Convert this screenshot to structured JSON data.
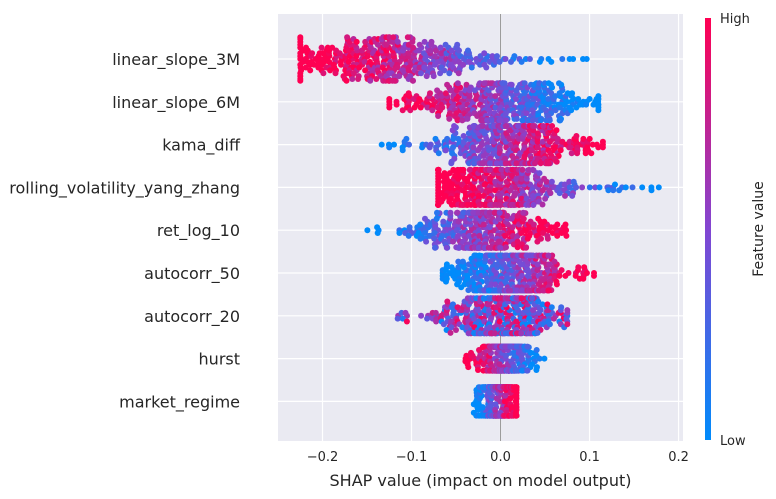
{
  "chart_data": {
    "type": "scatter",
    "subtype": "shap-beeswarm",
    "xlabel": "SHAP value (impact on model output)",
    "xlim": [
      -0.25,
      0.205
    ],
    "xticks": [
      -0.2,
      -0.1,
      0.0,
      0.1,
      0.2
    ],
    "xtick_labels": [
      "−0.2",
      "−0.1",
      "0.0",
      "0.1",
      "0.2"
    ],
    "colorbar": {
      "title": "Feature value",
      "high_label": "High",
      "low_label": "Low",
      "low_color": "#008bfb",
      "high_color": "#ff0052"
    },
    "background": "#eaeaf2",
    "grid": true,
    "features": [
      {
        "name": "linear_slope_3M",
        "range": [
          -0.225,
          0.1
        ],
        "center": -0.12,
        "spread": 0.06,
        "corr": -1,
        "width": 1.0
      },
      {
        "name": "linear_slope_6M",
        "range": [
          -0.125,
          0.11
        ],
        "center": 0.0,
        "spread": 0.05,
        "corr": -1,
        "width": 0.85
      },
      {
        "name": "kama_diff",
        "range": [
          -0.145,
          0.115
        ],
        "center": 0.01,
        "spread": 0.04,
        "corr": 1,
        "width": 0.85
      },
      {
        "name": "rolling_volatility_yang_zhang",
        "range": [
          -0.07,
          0.185
        ],
        "center": -0.01,
        "spread": 0.04,
        "corr": -1,
        "width": 0.8
      },
      {
        "name": "ret_log_10",
        "range": [
          -0.155,
          0.08
        ],
        "center": -0.02,
        "spread": 0.035,
        "corr": 1,
        "width": 0.8
      },
      {
        "name": "autocorr_50",
        "range": [
          -0.065,
          0.105
        ],
        "center": 0.01,
        "spread": 0.035,
        "corr": 1,
        "width": 0.8
      },
      {
        "name": "autocorr_20",
        "range": [
          -0.12,
          0.075
        ],
        "center": 0.0,
        "spread": 0.035,
        "corr": 0,
        "width": 0.8
      },
      {
        "name": "hurst",
        "range": [
          -0.04,
          0.05
        ],
        "center": 0.005,
        "spread": 0.012,
        "corr": -1,
        "width": 0.55
      },
      {
        "name": "market_regime",
        "range": [
          -0.03,
          0.018
        ],
        "center": -0.003,
        "spread": 0.01,
        "corr": 1,
        "width": 0.65
      }
    ]
  }
}
